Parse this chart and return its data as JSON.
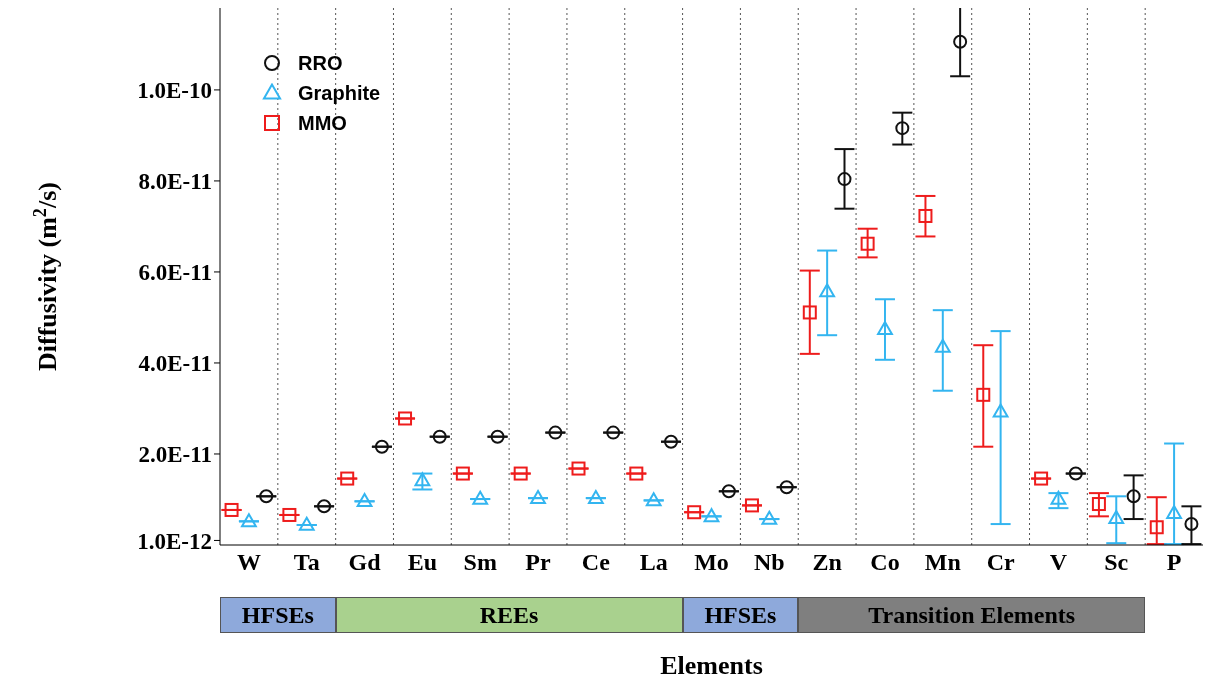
{
  "chart_data": {
    "type": "scatter",
    "xlabel": "Elements",
    "ylabel": "Diffusivity (m$^{2}$/s)",
    "categories": [
      "W",
      "Ta",
      "Gd",
      "Eu",
      "Sm",
      "Pr",
      "Ce",
      "La",
      "Mo",
      "Nb",
      "Zn",
      "Co",
      "Mn",
      "Cr",
      "V",
      "Sc",
      "P"
    ],
    "ylim": [
      0,
      1.18e-10
    ],
    "yticks": [
      {
        "value": 1e-12,
        "label": "1.0E-12"
      },
      {
        "value": 2e-11,
        "label": "2.0E-11"
      },
      {
        "value": 4e-11,
        "label": "4.0E-11"
      },
      {
        "value": 6e-11,
        "label": "6.0E-11"
      },
      {
        "value": 8e-11,
        "label": "8.0E-11"
      },
      {
        "value": 1e-10,
        "label": "1.0E-10"
      }
    ],
    "grid": "x",
    "legend": "top left",
    "series": [
      {
        "name": "MMO",
        "color": "#ee1c1c",
        "marker": "square",
        "values": [
          7.7e-12,
          6.6e-12,
          1.46e-11,
          2.78e-11,
          1.57e-11,
          1.57e-11,
          1.68e-11,
          1.57e-11,
          7.2e-12,
          8.7e-12,
          5.11e-11,
          6.62e-11,
          7.23e-11,
          3.3e-11,
          1.46e-11,
          9e-12,
          3.9e-12
        ],
        "errors": [
          null,
          null,
          null,
          null,
          null,
          null,
          null,
          null,
          null,
          null,
          [
            4.2e-11,
            6.03e-11
          ],
          [
            6.32e-11,
            6.95e-11
          ],
          [
            6.78e-11,
            7.67e-11
          ],
          [
            2.16e-11,
            4.39e-11
          ],
          null,
          [
            6.3e-12,
            1.14e-11
          ],
          [
            2e-13,
            1.05e-11
          ]
        ]
      },
      {
        "name": "Graphite",
        "color": "#33b5f0",
        "marker": "triangle",
        "values": [
          5.2e-12,
          4.4e-12,
          9.6e-12,
          1.42e-11,
          1.01e-11,
          1.03e-11,
          1.03e-11,
          9.8e-12,
          6.3e-12,
          5.7e-12,
          5.57e-11,
          4.74e-11,
          4.35e-11,
          2.93e-11,
          1.01e-11,
          5.9e-12,
          7e-12
        ],
        "errors": [
          null,
          null,
          null,
          [
            1.22e-11,
            1.57e-11
          ],
          null,
          null,
          null,
          null,
          null,
          null,
          [
            4.61e-11,
            6.47e-11
          ],
          [
            4.07e-11,
            5.4e-11
          ],
          [
            3.39e-11,
            5.16e-11
          ],
          [
            4.6e-12,
            4.7e-11
          ],
          [
            8.1e-12,
            1.14e-11
          ],
          [
            4e-13,
            1.07e-11
          ],
          [
            2e-13,
            2.23e-11
          ]
        ]
      },
      {
        "name": "RRO",
        "color": "#111111",
        "marker": "circle",
        "values": [
          1.07e-11,
          8.5e-12,
          2.16e-11,
          2.38e-11,
          2.38e-11,
          2.47e-11,
          2.47e-11,
          2.27e-11,
          1.18e-11,
          1.27e-11,
          8.04e-11,
          9.16e-11,
          1.106e-10,
          null,
          1.57e-11,
          1.07e-11,
          4.6e-12
        ],
        "errors": [
          null,
          null,
          null,
          null,
          null,
          null,
          null,
          null,
          null,
          null,
          [
            7.39e-11,
            8.7e-11
          ],
          [
            8.8e-11,
            9.5e-11
          ],
          [
            1.03e-10,
            1.183e-10
          ],
          null,
          null,
          [
            5.7e-12,
            1.53e-11
          ],
          [
            2e-13,
            8.5e-12
          ]
        ]
      }
    ],
    "annotations": [
      "HFSEs",
      "REEs",
      "HFSEs",
      "Transition Elements"
    ]
  }
}
